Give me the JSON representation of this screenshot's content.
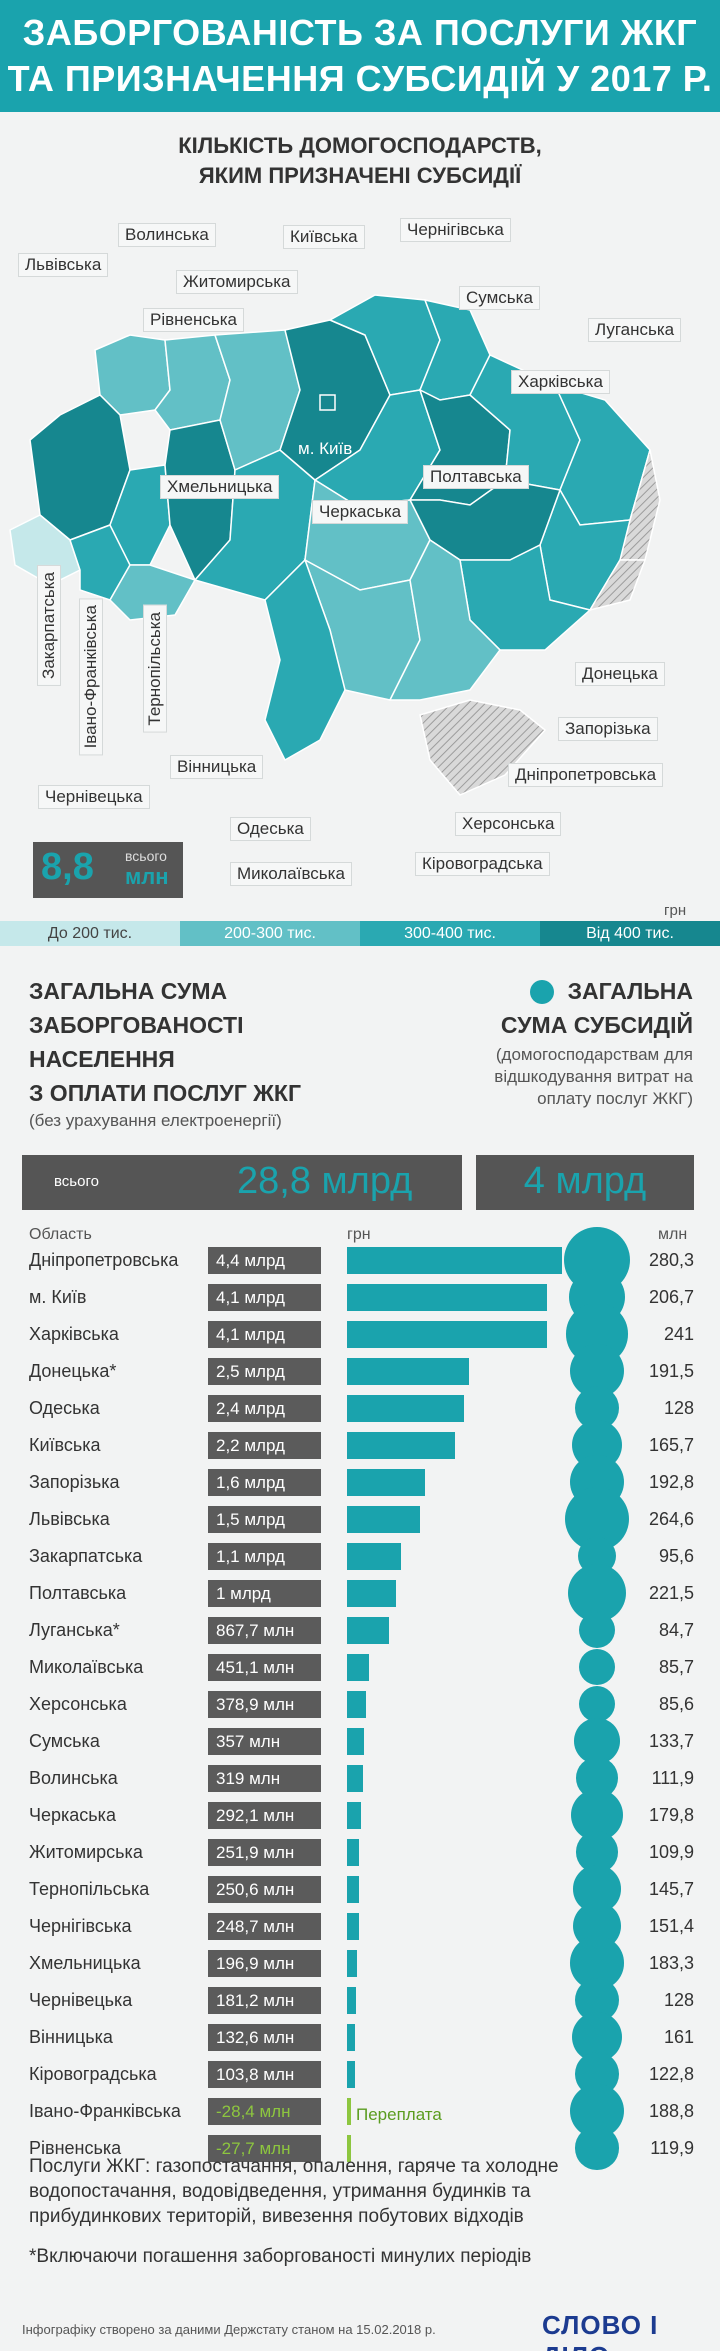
{
  "header": {
    "title_line1": "ЗАБОРГОВАНІСТЬ ЗА ПОСЛУГИ ЖКГ",
    "title_line2": "ТА ПРИЗНАЧЕННЯ СУБСИДІЙ У 2017 Р."
  },
  "map": {
    "title_line1": "КІЛЬКІСТЬ ДОМОГОСПОДАРСТВ,",
    "title_line2": "ЯКИМ ПРИЗНАЧЕНІ СУБСИДІЇ",
    "total_prefix": "всього",
    "total_value": "8,8",
    "total_unit": "млн",
    "colors": {
      "low": "#c5e8ea",
      "mid": "#62c0c6",
      "high": "#2aa9b2",
      "top": "#16878f",
      "occupied": "#d9d9d9"
    },
    "regions": {
      "volyn": "Волинська",
      "lviv": "Львівська",
      "kyiv_oblast": "Київська",
      "chernihiv": "Чернігівська",
      "zhytomyr": "Житомирська",
      "sumy": "Сумська",
      "rivne": "Рівненська",
      "luhansk": "Луганська",
      "kharkiv": "Харківська",
      "kyiv_city": "м. Київ",
      "khmelnytskyi": "Хмельницька",
      "poltava": "Полтавська",
      "cherkasy": "Черкаська",
      "zakarpattia": "Закарпатська",
      "ivano_frankivsk": "Івано-Франківська",
      "ternopil": "Тернопільська",
      "donetsk": "Донецька",
      "zaporizhzhia": "Запорізька",
      "vinnytsia": "Вінницька",
      "dnipro": "Дніпропетровська",
      "chernivtsi": "Чернівецька",
      "kherson": "Херсонська",
      "odesa": "Одеська",
      "kirovohrad": "Кіровоградська",
      "mykolaiv": "Миколаївська"
    },
    "legend": {
      "unit": "грн",
      "items": [
        "До 200 тис.",
        "200-300 тис.",
        "300-400 тис.",
        "Від 400 тис."
      ]
    }
  },
  "debt_section": {
    "title_line1": "ЗАГАЛЬНА СУМА",
    "title_line2": "ЗАБОРГОВАНОСТІ",
    "title_line3": "НАСЕЛЕННЯ",
    "title_line4": "З ОПЛАТИ ПОСЛУГ ЖКГ",
    "note": "(без урахування електроенергії)",
    "total_prefix": "всього",
    "total_value": "28,8 млрд"
  },
  "subsidy_section": {
    "title_line1": "ЗАГАЛЬНА",
    "title_line2": "СУМА СУБСИДІЙ",
    "note_line1": "(домогосподарствам для",
    "note_line2": "відшкодування витрат на",
    "note_line3": "оплату послуг ЖКГ)",
    "total_value": "4 млрд"
  },
  "chart_data": {
    "type": "bar",
    "columns": {
      "region": "Область",
      "debt_unit": "грн",
      "subsidy_unit": "млн"
    },
    "rows": [
      {
        "region": "Дніпропетровська",
        "debt_label": "4,4 млрд",
        "debt_mln": 4400,
        "subsidy": "280,3",
        "subsidy_mln": 280.3
      },
      {
        "region": "м. Київ",
        "debt_label": "4,1 млрд",
        "debt_mln": 4100,
        "subsidy": "206,7",
        "subsidy_mln": 206.7
      },
      {
        "region": "Харківська",
        "debt_label": "4,1 млрд",
        "debt_mln": 4100,
        "subsidy": "241",
        "subsidy_mln": 241
      },
      {
        "region": "Донецька*",
        "debt_label": "2,5 млрд",
        "debt_mln": 2500,
        "subsidy": "191,5",
        "subsidy_mln": 191.5
      },
      {
        "region": "Одеська",
        "debt_label": "2,4 млрд",
        "debt_mln": 2400,
        "subsidy": "128",
        "subsidy_mln": 128
      },
      {
        "region": "Київська",
        "debt_label": "2,2 млрд",
        "debt_mln": 2200,
        "subsidy": "165,7",
        "subsidy_mln": 165.7
      },
      {
        "region": "Запорізька",
        "debt_label": "1,6 млрд",
        "debt_mln": 1600,
        "subsidy": "192,8",
        "subsidy_mln": 192.8
      },
      {
        "region": "Львівська",
        "debt_label": "1,5 млрд",
        "debt_mln": 1500,
        "subsidy": "264,6",
        "subsidy_mln": 264.6
      },
      {
        "region": "Закарпатська",
        "debt_label": "1,1 млрд",
        "debt_mln": 1100,
        "subsidy": "95,6",
        "subsidy_mln": 95.6
      },
      {
        "region": "Полтавська",
        "debt_label": "1 млрд",
        "debt_mln": 1000,
        "subsidy": "221,5",
        "subsidy_mln": 221.5
      },
      {
        "region": "Луганська*",
        "debt_label": "867,7 млн",
        "debt_mln": 867.7,
        "subsidy": "84,7",
        "subsidy_mln": 84.7
      },
      {
        "region": "Миколаївська",
        "debt_label": "451,1 млн",
        "debt_mln": 451.1,
        "subsidy": "85,7",
        "subsidy_mln": 85.7
      },
      {
        "region": "Херсонська",
        "debt_label": "378,9 млн",
        "debt_mln": 378.9,
        "subsidy": "85,6",
        "subsidy_mln": 85.6
      },
      {
        "region": "Сумська",
        "debt_label": "357 млн",
        "debt_mln": 357,
        "subsidy": "133,7",
        "subsidy_mln": 133.7
      },
      {
        "region": "Волинська",
        "debt_label": "319 млн",
        "debt_mln": 319,
        "subsidy": "111,9",
        "subsidy_mln": 111.9
      },
      {
        "region": "Черкаська",
        "debt_label": "292,1 млн",
        "debt_mln": 292.1,
        "subsidy": "179,8",
        "subsidy_mln": 179.8
      },
      {
        "region": "Житомирська",
        "debt_label": "251,9 млн",
        "debt_mln": 251.9,
        "subsidy": "109,9",
        "subsidy_mln": 109.9
      },
      {
        "region": "Тернопільська",
        "debt_label": "250,6 млн",
        "debt_mln": 250.6,
        "subsidy": "145,7",
        "subsidy_mln": 145.7
      },
      {
        "region": "Чернігівська",
        "debt_label": "248,7 млн",
        "debt_mln": 248.7,
        "subsidy": "151,4",
        "subsidy_mln": 151.4
      },
      {
        "region": "Хмельницька",
        "debt_label": "196,9 млн",
        "debt_mln": 196.9,
        "subsidy": "183,3",
        "subsidy_mln": 183.3
      },
      {
        "region": "Чернівецька",
        "debt_label": "181,2 млн",
        "debt_mln": 181.2,
        "subsidy": "128",
        "subsidy_mln": 128
      },
      {
        "region": "Вінницька",
        "debt_label": "132,6 млн",
        "debt_mln": 132.6,
        "subsidy": "161",
        "subsidy_mln": 161
      },
      {
        "region": "Кіровоградська",
        "debt_label": "103,8 млн",
        "debt_mln": 103.8,
        "subsidy": "122,8",
        "subsidy_mln": 122.8
      },
      {
        "region": "Івано-Франківська",
        "debt_label": "-28,4 млн",
        "debt_mln": -28.4,
        "subsidy": "188,8",
        "subsidy_mln": 188.8
      },
      {
        "region": "Рівненська",
        "debt_label": "-27,7 млн",
        "debt_mln": -27.7,
        "subsidy": "119,9",
        "subsidy_mln": 119.9
      }
    ],
    "overpayment_label": "Переплата",
    "colors": {
      "bar": "#1aa3ad",
      "negative": "#8dc63f"
    }
  },
  "footer": {
    "services_line1": "Послуги ЖКГ: газопостачання, опалення, гаряче та холодне",
    "services_line2": "водопостачання, водовідведення, утримання будинків та",
    "services_line3": "прибудинкових територій, вивезення побутових відходів",
    "footnote": "*Включаючи погашення заборгованості минулих періодів",
    "source": "Інфографіку створено за даними Держстату станом на 15.02.2018 р.",
    "logo": "СЛОВО І ДІЛО"
  }
}
